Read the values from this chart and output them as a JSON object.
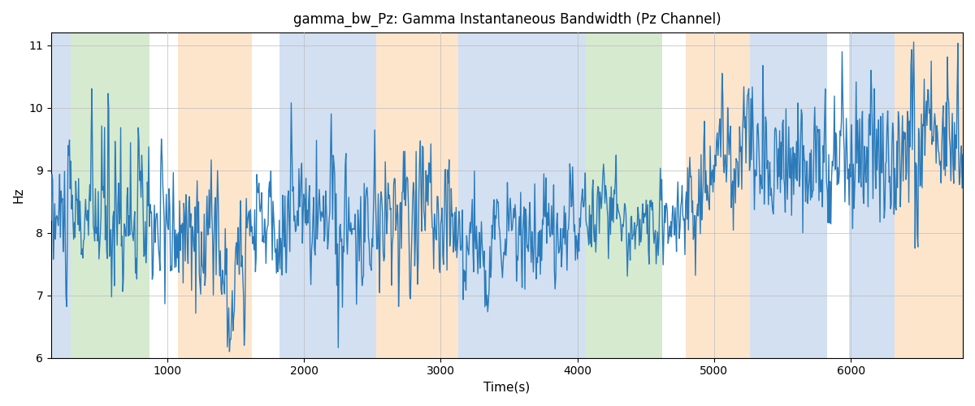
{
  "title": "gamma_bw_Pz: Gamma Instantaneous Bandwidth (Pz Channel)",
  "xlabel": "Time(s)",
  "ylabel": "Hz",
  "xlim": [
    150,
    6820
  ],
  "ylim": [
    6,
    11.2
  ],
  "yticks": [
    6,
    7,
    8,
    9,
    10,
    11
  ],
  "xticks": [
    1000,
    2000,
    3000,
    4000,
    5000,
    6000
  ],
  "line_color": "#2b7bba",
  "line_width": 1.0,
  "background_color": "#ffffff",
  "grid_color": "#bbbbbb",
  "colored_bands": [
    {
      "xmin": 150,
      "xmax": 290,
      "color": "#aec7e8",
      "alpha": 0.55
    },
    {
      "xmin": 290,
      "xmax": 870,
      "color": "#b5d9a8",
      "alpha": 0.55
    },
    {
      "xmin": 870,
      "xmax": 1080,
      "color": "#ffffff",
      "alpha": 0.0
    },
    {
      "xmin": 1080,
      "xmax": 1620,
      "color": "#fdd0a2",
      "alpha": 0.55
    },
    {
      "xmin": 1620,
      "xmax": 1820,
      "color": "#ffffff",
      "alpha": 0.0
    },
    {
      "xmin": 1820,
      "xmax": 2530,
      "color": "#aec7e8",
      "alpha": 0.55
    },
    {
      "xmin": 2530,
      "xmax": 3130,
      "color": "#fdd0a2",
      "alpha": 0.55
    },
    {
      "xmin": 3130,
      "xmax": 3820,
      "color": "#aec7e8",
      "alpha": 0.55
    },
    {
      "xmin": 3820,
      "xmax": 4060,
      "color": "#aec7e8",
      "alpha": 0.55
    },
    {
      "xmin": 4060,
      "xmax": 4620,
      "color": "#b5d9a8",
      "alpha": 0.55
    },
    {
      "xmin": 4620,
      "xmax": 4790,
      "color": "#ffffff",
      "alpha": 0.0
    },
    {
      "xmin": 4790,
      "xmax": 5260,
      "color": "#fdd0a2",
      "alpha": 0.55
    },
    {
      "xmin": 5260,
      "xmax": 5830,
      "color": "#aec7e8",
      "alpha": 0.55
    },
    {
      "xmin": 5830,
      "xmax": 5990,
      "color": "#ffffff",
      "alpha": 0.0
    },
    {
      "xmin": 5990,
      "xmax": 6320,
      "color": "#aec7e8",
      "alpha": 0.55
    },
    {
      "xmin": 6320,
      "xmax": 6820,
      "color": "#fdd0a2",
      "alpha": 0.55
    }
  ]
}
